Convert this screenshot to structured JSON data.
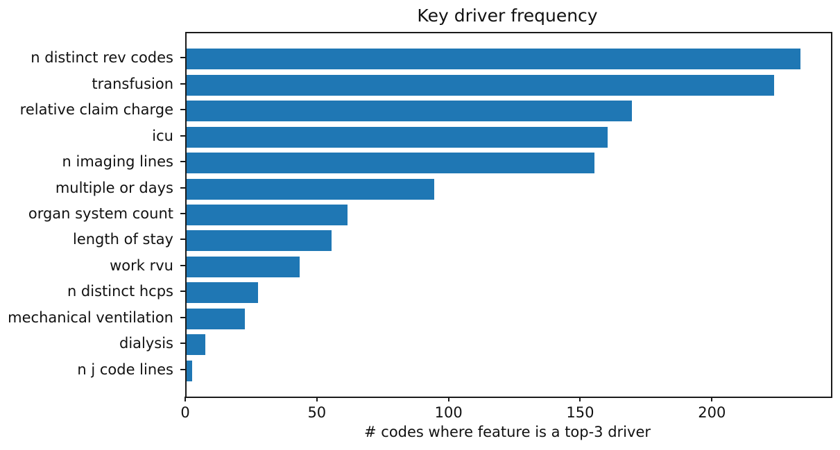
{
  "figure": {
    "background": "#ffffff",
    "axis_color": "#1a1a1a",
    "text_color": "#111111"
  },
  "chart_data": {
    "type": "bar",
    "orientation": "horizontal",
    "title": "Key driver frequency",
    "xlabel": "# codes where feature is a top-3 driver",
    "ylabel": "",
    "categories": [
      "n distinct rev codes",
      "transfusion",
      "relative claim charge",
      "icu",
      "n imaging lines",
      "multiple or days",
      "organ system count",
      "length of stay",
      "work rvu",
      "n distinct hcps",
      "mechanical ventilation",
      "dialysis",
      "n j code lines"
    ],
    "values": [
      233,
      223,
      169,
      160,
      155,
      94,
      61,
      55,
      43,
      27,
      22,
      7,
      2
    ],
    "x_ticks": [
      0,
      50,
      100,
      150,
      200
    ],
    "xlim": [
      0,
      244.7
    ],
    "grid": false,
    "legend": "none",
    "bar_color": "#1f77b4"
  }
}
